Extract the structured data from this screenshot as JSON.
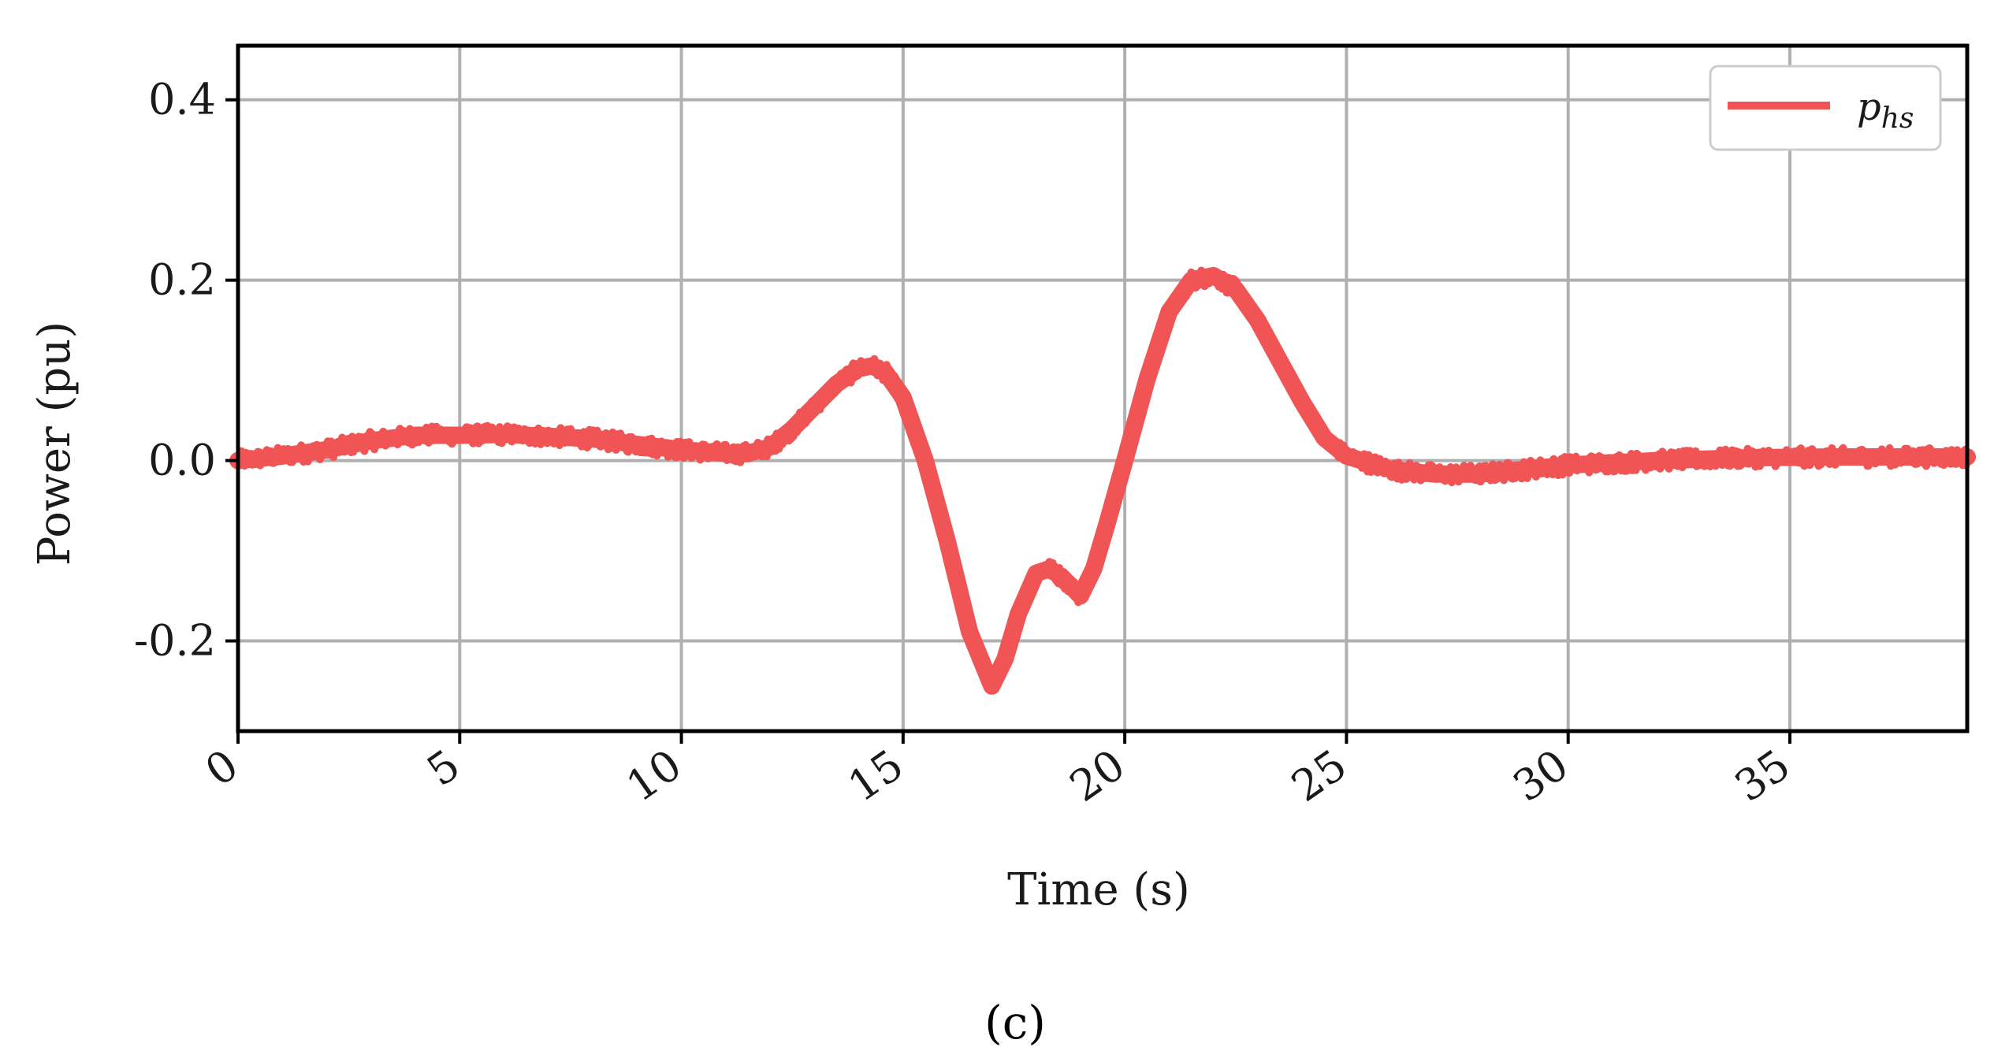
{
  "chart_data": {
    "type": "line",
    "xlabel": "Time (s)",
    "ylabel": "Power (pu)",
    "xlim": [
      0,
      39
    ],
    "ylim": [
      -0.3,
      0.46
    ],
    "x_ticks": [
      0,
      5,
      10,
      15,
      20,
      25,
      30,
      35
    ],
    "x_tick_labels": [
      "0",
      "5",
      "10",
      "15",
      "20",
      "25",
      "30",
      "35"
    ],
    "y_ticks": [
      -0.2,
      0.0,
      0.2,
      0.4
    ],
    "y_tick_labels": [
      "-0.2",
      "0.0",
      "0.2",
      "0.4"
    ],
    "grid": true,
    "legend_position": "top-right",
    "series": [
      {
        "name": "p_hs",
        "color": "#f05454",
        "x": [
          0,
          1,
          2,
          3,
          4,
          5,
          6,
          7,
          8,
          9,
          10,
          11,
          11.5,
          12,
          12.5,
          13,
          13.5,
          14,
          14.3,
          14.6,
          15,
          15.5,
          16,
          16.5,
          17,
          17.3,
          17.6,
          18,
          18.3,
          18.6,
          19,
          19.3,
          19.6,
          20,
          20.5,
          21,
          21.5,
          22,
          22.5,
          23,
          23.5,
          24,
          24.5,
          25,
          26,
          27,
          28,
          29,
          30,
          32,
          34,
          36,
          38,
          39
        ],
        "y": [
          0.0,
          0.005,
          0.012,
          0.022,
          0.028,
          0.028,
          0.029,
          0.027,
          0.024,
          0.018,
          0.012,
          0.008,
          0.008,
          0.015,
          0.035,
          0.06,
          0.085,
          0.102,
          0.105,
          0.098,
          0.07,
          0.0,
          -0.09,
          -0.19,
          -0.25,
          -0.22,
          -0.17,
          -0.125,
          -0.12,
          -0.13,
          -0.15,
          -0.12,
          -0.07,
          0.0,
          0.09,
          0.165,
          0.2,
          0.205,
          0.19,
          0.155,
          0.11,
          0.065,
          0.025,
          0.005,
          -0.01,
          -0.015,
          -0.015,
          -0.01,
          -0.005,
          0.0,
          0.003,
          0.004,
          0.004,
          0.004
        ]
      }
    ]
  },
  "legend": {
    "label_main": "p",
    "label_sub": "hs"
  },
  "caption": "(c)"
}
